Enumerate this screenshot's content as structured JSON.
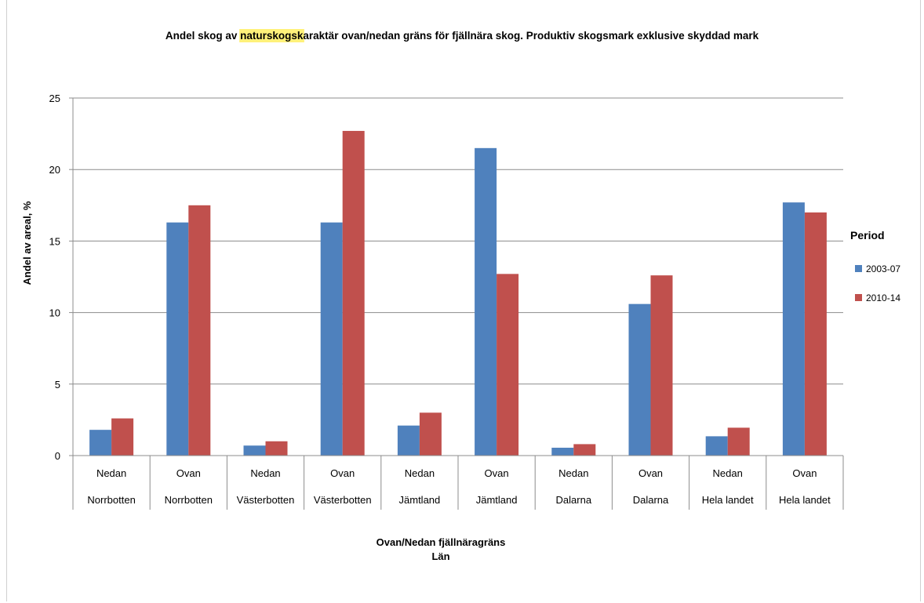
{
  "chart_data": {
    "type": "bar",
    "title": "Andel skog av naturskogskaraktär ovan/nedan gräns för fjällnära skog. Produktiv skogsmark exklusive skyddad mark",
    "title_parts": {
      "before": "Andel skog av ",
      "highlight": "naturskogsk",
      "after": "araktär ovan/nedan gräns för fjällnära skog. Produktiv skogsmark exklusive skyddad mark"
    },
    "ylabel": "Andel av areal, %",
    "xlabel_lines": [
      "Ovan/Nedan fjällnäragräns",
      "Län"
    ],
    "ylim": [
      0,
      25
    ],
    "yticks": [
      "0",
      "5",
      "10",
      "15",
      "20",
      "25"
    ],
    "grid": true,
    "legend": {
      "title": "Period",
      "position": "right"
    },
    "categories": [
      {
        "level1": "Nedan",
        "level2": "Norrbotten"
      },
      {
        "level1": "Ovan",
        "level2": "Norrbotten"
      },
      {
        "level1": "Nedan",
        "level2": "Västerbotten"
      },
      {
        "level1": "Ovan",
        "level2": "Västerbotten"
      },
      {
        "level1": "Nedan",
        "level2": "Jämtland"
      },
      {
        "level1": "Ovan",
        "level2": "Jämtland"
      },
      {
        "level1": "Nedan",
        "level2": "Dalarna"
      },
      {
        "level1": "Ovan",
        "level2": "Dalarna"
      },
      {
        "level1": "Nedan",
        "level2": "Hela landet"
      },
      {
        "level1": "Ovan",
        "level2": "Hela landet"
      }
    ],
    "series": [
      {
        "name": "2003-07",
        "color": "#4f81bd",
        "values": [
          1.8,
          16.3,
          0.7,
          16.3,
          2.1,
          21.5,
          0.55,
          10.6,
          1.35,
          17.7
        ]
      },
      {
        "name": "2010-14",
        "color": "#c0504d",
        "values": [
          2.6,
          17.5,
          1.0,
          22.7,
          3.0,
          12.7,
          0.8,
          12.6,
          1.95,
          17.0
        ]
      }
    ]
  }
}
